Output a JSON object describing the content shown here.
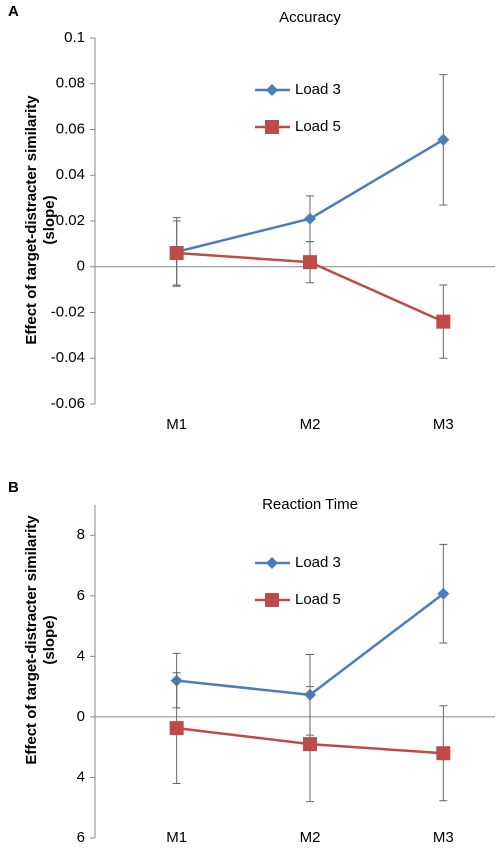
{
  "chart_data": [
    {
      "type": "line",
      "panel_label": "A",
      "title": "Accuracy",
      "y_label": [
        "Effect of target-distracter similarity",
        "(slope)"
      ],
      "categories": [
        "M1",
        "M2",
        "M3"
      ],
      "ylim": [
        -0.06,
        0.1
      ],
      "yticks": [
        -0.06,
        -0.04,
        -0.02,
        0,
        0.02,
        0.04,
        0.06,
        0.08,
        0.1
      ],
      "series": [
        {
          "name": "Load 3",
          "color": "#4a7ebb",
          "marker": "diamond",
          "values": [
            0.0065,
            0.021,
            0.0555
          ],
          "errors": [
            0.015,
            0.01,
            0.0285
          ]
        },
        {
          "name": "Load 5",
          "color": "#be4b48",
          "marker": "square",
          "values": [
            0.006,
            0.002,
            -0.024
          ],
          "errors": [
            0.014,
            0.009,
            0.016
          ]
        }
      ]
    },
    {
      "type": "line",
      "panel_label": "B",
      "title": "Reaction Time",
      "y_label": [
        "Effect of target-distracter similarity",
        "(slope)"
      ],
      "categories": [
        "M1",
        "M2",
        "M3"
      ],
      "ylim": [
        -4,
        7
      ],
      "yticks": [
        {
          "value": -4,
          "label": "6"
        },
        {
          "value": -2,
          "label": "4"
        },
        0,
        {
          "value": 2,
          "label": "4"
        },
        {
          "value": 4,
          "label": "6"
        },
        {
          "value": 6,
          "label": "8"
        }
      ],
      "series": [
        {
          "name": "Load 3",
          "color": "#4a7ebb",
          "marker": "diamond",
          "values": [
            1.2,
            0.73,
            4.07
          ],
          "errors": [
            0.9,
            1.33,
            1.63
          ]
        },
        {
          "name": "Load 5",
          "color": "#be4b48",
          "marker": "square",
          "values": [
            -0.37,
            -0.9,
            -1.2
          ],
          "errors": [
            1.83,
            1.9,
            1.57
          ]
        }
      ]
    }
  ]
}
